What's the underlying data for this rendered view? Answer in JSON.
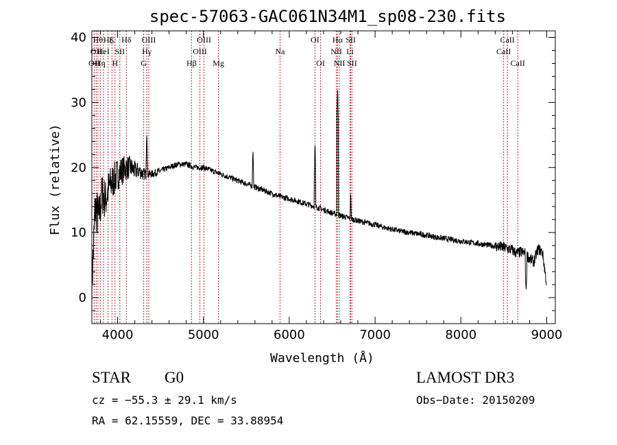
{
  "chart_data": {
    "type": "line",
    "title": "spec-57063-GAC061N34M1_sp08-230.fits",
    "xlabel": "Wavelength (Å)",
    "ylabel": "Flux (relative)",
    "xlim": [
      3700,
      9100
    ],
    "ylim": [
      -4,
      41
    ],
    "x_ticks": [
      4000,
      5000,
      6000,
      7000,
      8000,
      9000
    ],
    "y_ticks": [
      0,
      10,
      20,
      30,
      40
    ],
    "x_tick_labels": [
      "4000",
      "5000",
      "6000",
      "7000",
      "8000",
      "9000"
    ],
    "y_tick_labels": [
      "0",
      "10",
      "20",
      "30",
      "40"
    ],
    "spectrum": {
      "x": [
        3700,
        3740,
        3780,
        3820,
        3860,
        3900,
        3950,
        4000,
        4050,
        4100,
        4150,
        4200,
        4250,
        4300,
        4350,
        4400,
        4500,
        4600,
        4700,
        4800,
        4900,
        5000,
        5100,
        5200,
        5300,
        5400,
        5500,
        5600,
        5700,
        5800,
        5900,
        6000,
        6100,
        6200,
        6300,
        6400,
        6500,
        6600,
        6700,
        6800,
        6900,
        7000,
        7100,
        7200,
        7300,
        7400,
        7500,
        7600,
        7700,
        7800,
        7900,
        8000,
        8100,
        8200,
        8300,
        8400,
        8500,
        8550,
        8600,
        8650,
        8700,
        8750,
        8800,
        8850,
        8900,
        8950,
        9000
      ],
      "y": [
        2,
        14,
        12,
        16,
        15,
        17,
        18,
        19,
        19.5,
        20,
        20,
        19.5,
        19.5,
        19,
        19,
        19,
        19.5,
        20,
        20.5,
        20.5,
        20,
        20,
        19.5,
        19,
        18.5,
        18,
        17.5,
        17,
        16.5,
        16,
        15.5,
        15.2,
        14.8,
        14.4,
        14,
        13.5,
        13,
        12.6,
        12.2,
        11.8,
        11.5,
        11.2,
        10.8,
        10.5,
        10.2,
        10,
        9.8,
        9.6,
        9.3,
        9.1,
        8.9,
        8.7,
        8.5,
        8.3,
        8.1,
        7.9,
        7.7,
        7.5,
        7.3,
        6.8,
        7,
        6.8,
        6,
        5.5,
        7.5,
        7,
        2
      ],
      "emission_lines": [
        {
          "x": 4340,
          "y": 25.5
        },
        {
          "x": 5577,
          "y": 23
        },
        {
          "x": 6300,
          "y": 24
        },
        {
          "x": 6563,
          "y": 32.5
        },
        {
          "x": 6716,
          "y": 16.5
        }
      ],
      "dips": [
        {
          "x": 8760,
          "y": 1
        }
      ],
      "noise": {
        "blue_amplitude": 8,
        "red_amplitude": 0.6
      }
    },
    "lines": [
      {
        "x": 3727,
        "labels": [
          "OII"
        ],
        "row": 2
      },
      {
        "x": 3750,
        "labels": [
          "OII"
        ],
        "row": 1
      },
      {
        "x": 3771,
        "labels": [
          "Hθ"
        ],
        "row": 0
      },
      {
        "x": 3798,
        "labels": [
          "Hη"
        ],
        "row": 2
      },
      {
        "x": 3835,
        "labels": [
          "HeI"
        ],
        "row": 1
      },
      {
        "x": 3889,
        "labels": [
          "Hζ"
        ],
        "row": 0
      },
      {
        "x": 3934,
        "labels": [
          "K"
        ],
        "row": 0
      },
      {
        "x": 3970,
        "labels": [
          "H"
        ],
        "row": 2
      },
      {
        "x": 4026,
        "labels": [
          "SII"
        ],
        "row": 1
      },
      {
        "x": 4102,
        "labels": [
          "Hδ"
        ],
        "row": 0
      },
      {
        "x": 4304,
        "labels": [
          "G"
        ],
        "row": 2
      },
      {
        "x": 4340,
        "labels": [
          "Hγ"
        ],
        "row": 1
      },
      {
        "x": 4363,
        "labels": [
          "OIII"
        ],
        "row": 0
      },
      {
        "x": 4861,
        "labels": [
          "Hβ"
        ],
        "row": 2
      },
      {
        "x": 4959,
        "labels": [
          "OIII"
        ],
        "row": 1
      },
      {
        "x": 5007,
        "labels": [
          "OIII"
        ],
        "row": 0
      },
      {
        "x": 5175,
        "labels": [
          "Mg"
        ],
        "row": 2
      },
      {
        "x": 5893,
        "labels": [
          "Na"
        ],
        "row": 1
      },
      {
        "x": 6300,
        "labels": [
          "OI"
        ],
        "row": 0
      },
      {
        "x": 6364,
        "labels": [
          "OI"
        ],
        "row": 2
      },
      {
        "x": 6548,
        "labels": [
          "NII"
        ],
        "row": 1
      },
      {
        "x": 6563,
        "labels": [
          "Hα"
        ],
        "row": 0
      },
      {
        "x": 6584,
        "labels": [
          "NII"
        ],
        "row": 2
      },
      {
        "x": 6708,
        "labels": [
          "Li"
        ],
        "row": 1
      },
      {
        "x": 6716,
        "labels": [
          "SII"
        ],
        "row": 0
      },
      {
        "x": 6731,
        "labels": [
          "SII"
        ],
        "row": 2
      },
      {
        "x": 8498,
        "labels": [
          "CaII"
        ],
        "row": 1
      },
      {
        "x": 8542,
        "labels": [
          "CaII"
        ],
        "row": 0
      },
      {
        "x": 8662,
        "labels": [
          "CaII"
        ],
        "row": 2
      }
    ]
  },
  "info": {
    "class": "STAR",
    "subclass": "G0",
    "survey": "LAMOST DR3",
    "cz": "cz = −55.3 ± 29.1 km/s",
    "obs_date": "Obs−Date: 20150209",
    "radec": "RA =  62.15559, DEC =  33.88954"
  },
  "colors": {
    "line_marker": "#b22222",
    "spectrum": "#000000",
    "axis": "#000000",
    "background": "#ffffff"
  }
}
